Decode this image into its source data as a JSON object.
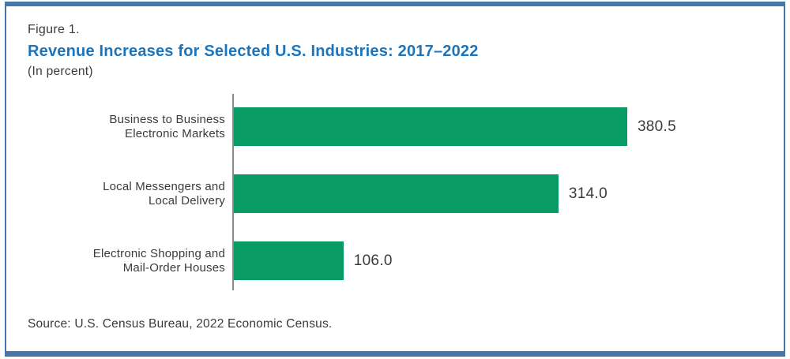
{
  "figure": {
    "label": "Figure 1.",
    "title": "Revenue Increases for Selected U.S. Industries: 2017–2022",
    "subtitle": "(In percent)",
    "source": "Source: U.S. Census Bureau, 2022 Economic Census."
  },
  "colors": {
    "accent_blue": "#1b75bc",
    "frame_blue": "#4577ac",
    "bar_green": "#089b63",
    "text_dark": "#3b3b3b",
    "axis_gray": "#8a8a8a"
  },
  "chart_data": {
    "type": "bar",
    "orientation": "horizontal",
    "title": "Revenue Increases for Selected U.S. Industries: 2017–2022",
    "xlabel": "",
    "ylabel": "",
    "unit": "percent",
    "categories": [
      "Business to Business Electronic Markets",
      "Local Messengers and Local Delivery",
      "Electronic Shopping and Mail-Order Houses"
    ],
    "category_lines": [
      [
        "Business to Business",
        "Electronic Markets"
      ],
      [
        "Local Messengers and",
        "Local Delivery"
      ],
      [
        "Electronic Shopping and",
        "Mail-Order Houses"
      ]
    ],
    "values": [
      380.5,
      314.0,
      106.0
    ],
    "value_labels": [
      "380.5",
      "314.0",
      "106.0"
    ],
    "xlim": [
      0,
      405
    ],
    "grid": false,
    "legend": false
  }
}
